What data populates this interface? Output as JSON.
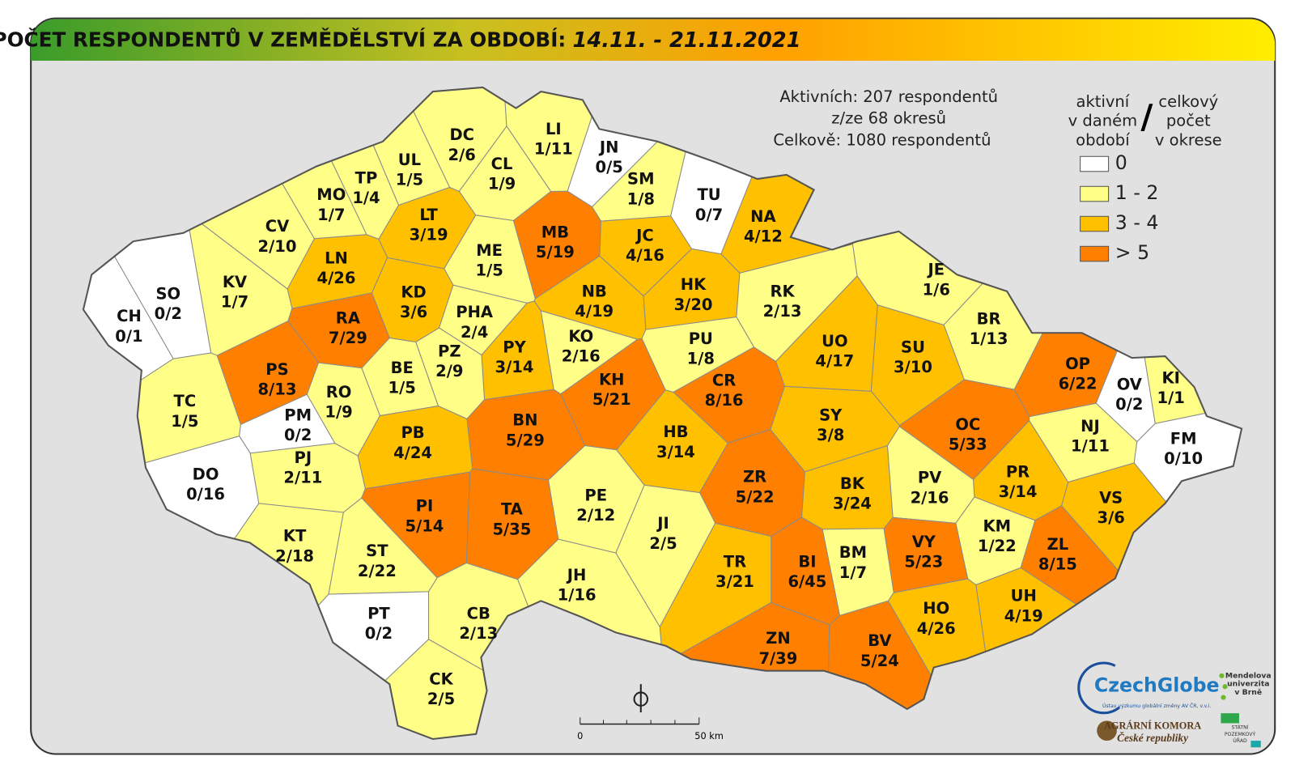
{
  "header": {
    "title": "POČET RESPONDENTŮ V ZEMĚDĚLSTVÍ ZA OBDOBÍ:",
    "period": "14.11. - 21.11.2021"
  },
  "summary": [
    "Aktivních: 207 respondentů",
    "z/ze 68 okresů",
    "Celkově: 1080 respondentů"
  ],
  "legend": {
    "left": [
      "aktivní",
      "v daném",
      "období"
    ],
    "separator": "/",
    "right": [
      "celkový",
      "počet",
      "v okrese"
    ],
    "items": [
      {
        "label": "0",
        "color": "#ffffff"
      },
      {
        "label": "1 - 2",
        "color": "#ffff88"
      },
      {
        "label": "3 - 4",
        "color": "#ffc000"
      },
      {
        "label": "> 5",
        "color": "#ff8000"
      }
    ]
  },
  "districts": [
    {
      "code": "DC",
      "label": "2/6",
      "active": 2,
      "color": "#ffff88"
    },
    {
      "code": "LI",
      "label": "1/11",
      "active": 1,
      "color": "#ffff88"
    },
    {
      "code": "JN",
      "label": "0/5",
      "active": 0,
      "color": "#ffffff"
    },
    {
      "code": "CL",
      "label": "1/9",
      "active": 1,
      "color": "#ffff88"
    },
    {
      "code": "UL",
      "label": "1/5",
      "active": 1,
      "color": "#ffff88"
    },
    {
      "code": "TP",
      "label": "1/4",
      "active": 1,
      "color": "#ffff88"
    },
    {
      "code": "MO",
      "label": "1/7",
      "active": 1,
      "color": "#ffff88"
    },
    {
      "code": "SM",
      "label": "1/8",
      "active": 1,
      "color": "#ffff88"
    },
    {
      "code": "TU",
      "label": "0/7",
      "active": 0,
      "color": "#ffffff"
    },
    {
      "code": "NA",
      "label": "4/12",
      "active": 4,
      "color": "#ffc000"
    },
    {
      "code": "LT",
      "label": "3/19",
      "active": 3,
      "color": "#ffc000"
    },
    {
      "code": "MB",
      "label": "5/19",
      "active": 5,
      "color": "#ff8000"
    },
    {
      "code": "CV",
      "label": "2/10",
      "active": 2,
      "color": "#ffff88"
    },
    {
      "code": "JC",
      "label": "4/16",
      "active": 4,
      "color": "#ffc000"
    },
    {
      "code": "ME",
      "label": "1/5",
      "active": 1,
      "color": "#ffff88"
    },
    {
      "code": "LN",
      "label": "4/26",
      "active": 4,
      "color": "#ffc000"
    },
    {
      "code": "JE",
      "label": "1/6",
      "active": 1,
      "color": "#ffff88"
    },
    {
      "code": "KV",
      "label": "1/7",
      "active": 1,
      "color": "#ffff88"
    },
    {
      "code": "SO",
      "label": "0/2",
      "active": 0,
      "color": "#ffffff"
    },
    {
      "code": "KD",
      "label": "3/6",
      "active": 3,
      "color": "#ffc000"
    },
    {
      "code": "NB",
      "label": "4/19",
      "active": 4,
      "color": "#ffc000"
    },
    {
      "code": "HK",
      "label": "3/20",
      "active": 3,
      "color": "#ffc000"
    },
    {
      "code": "RK",
      "label": "2/13",
      "active": 2,
      "color": "#ffff88"
    },
    {
      "code": "CH",
      "label": "0/1",
      "active": 0,
      "color": "#ffffff"
    },
    {
      "code": "RA",
      "label": "7/29",
      "active": 7,
      "color": "#ff8000"
    },
    {
      "code": "PHA",
      "label": "2/4",
      "active": 2,
      "color": "#ffff88"
    },
    {
      "code": "BR",
      "label": "1/13",
      "active": 1,
      "color": "#ffff88"
    },
    {
      "code": "UO",
      "label": "4/17",
      "active": 4,
      "color": "#ffc000"
    },
    {
      "code": "SU",
      "label": "3/10",
      "active": 3,
      "color": "#ffc000"
    },
    {
      "code": "PU",
      "label": "1/8",
      "active": 1,
      "color": "#ffff88"
    },
    {
      "code": "KO",
      "label": "2/16",
      "active": 2,
      "color": "#ffff88"
    },
    {
      "code": "PY",
      "label": "3/14",
      "active": 3,
      "color": "#ffc000"
    },
    {
      "code": "PZ",
      "label": "2/9",
      "active": 2,
      "color": "#ffff88"
    },
    {
      "code": "BE",
      "label": "1/5",
      "active": 1,
      "color": "#ffff88"
    },
    {
      "code": "PS",
      "label": "8/13",
      "active": 8,
      "color": "#ff8000"
    },
    {
      "code": "OP",
      "label": "6/22",
      "active": 6,
      "color": "#ff8000"
    },
    {
      "code": "KI",
      "label": "1/1",
      "active": 1,
      "color": "#ffff88"
    },
    {
      "code": "OV",
      "label": "0/2",
      "active": 0,
      "color": "#ffffff"
    },
    {
      "code": "KH",
      "label": "5/21",
      "active": 5,
      "color": "#ff8000"
    },
    {
      "code": "CR",
      "label": "8/16",
      "active": 8,
      "color": "#ff8000"
    },
    {
      "code": "RO",
      "label": "1/9",
      "active": 1,
      "color": "#ffff88"
    },
    {
      "code": "TC",
      "label": "1/5",
      "active": 1,
      "color": "#ffff88"
    },
    {
      "code": "SY",
      "label": "3/8",
      "active": 3,
      "color": "#ffc000"
    },
    {
      "code": "OC",
      "label": "5/33",
      "active": 5,
      "color": "#ff8000"
    },
    {
      "code": "PM",
      "label": "0/2",
      "active": 0,
      "color": "#ffffff"
    },
    {
      "code": "BN",
      "label": "5/29",
      "active": 5,
      "color": "#ff8000"
    },
    {
      "code": "NJ",
      "label": "1/11",
      "active": 1,
      "color": "#ffff88"
    },
    {
      "code": "FM",
      "label": "0/10",
      "active": 0,
      "color": "#ffffff"
    },
    {
      "code": "HB",
      "label": "3/14",
      "active": 3,
      "color": "#ffc000"
    },
    {
      "code": "PB",
      "label": "4/24",
      "active": 4,
      "color": "#ffc000"
    },
    {
      "code": "DO",
      "label": "0/16",
      "active": 0,
      "color": "#ffffff"
    },
    {
      "code": "PJ",
      "label": "2/11",
      "active": 2,
      "color": "#ffff88"
    },
    {
      "code": "ZR",
      "label": "5/22",
      "active": 5,
      "color": "#ff8000"
    },
    {
      "code": "BK",
      "label": "3/24",
      "active": 3,
      "color": "#ffc000"
    },
    {
      "code": "PR",
      "label": "3/14",
      "active": 3,
      "color": "#ffc000"
    },
    {
      "code": "PV",
      "label": "2/16",
      "active": 2,
      "color": "#ffff88"
    },
    {
      "code": "VS",
      "label": "3/6",
      "active": 3,
      "color": "#ffc000"
    },
    {
      "code": "PE",
      "label": "2/12",
      "active": 2,
      "color": "#ffff88"
    },
    {
      "code": "PI",
      "label": "5/14",
      "active": 5,
      "color": "#ff8000"
    },
    {
      "code": "TA",
      "label": "5/35",
      "active": 5,
      "color": "#ff8000"
    },
    {
      "code": "JI",
      "label": "2/5",
      "active": 2,
      "color": "#ffff88"
    },
    {
      "code": "KM",
      "label": "1/22",
      "active": 1,
      "color": "#ffff88"
    },
    {
      "code": "VY",
      "label": "5/23",
      "active": 5,
      "color": "#ff8000"
    },
    {
      "code": "ZL",
      "label": "8/15",
      "active": 8,
      "color": "#ff8000"
    },
    {
      "code": "KT",
      "label": "2/18",
      "active": 2,
      "color": "#ffff88"
    },
    {
      "code": "ST",
      "label": "2/22",
      "active": 2,
      "color": "#ffff88"
    },
    {
      "code": "BM",
      "label": "1/7",
      "active": 1,
      "color": "#ffff88"
    },
    {
      "code": "BI",
      "label": "6/45",
      "active": 6,
      "color": "#ff8000"
    },
    {
      "code": "TR",
      "label": "3/21",
      "active": 3,
      "color": "#ffc000"
    },
    {
      "code": "JH",
      "label": "1/16",
      "active": 1,
      "color": "#ffff88"
    },
    {
      "code": "UH",
      "label": "4/19",
      "active": 4,
      "color": "#ffc000"
    },
    {
      "code": "HO",
      "label": "4/26",
      "active": 4,
      "color": "#ffc000"
    },
    {
      "code": "PT",
      "label": "0/2",
      "active": 0,
      "color": "#ffffff"
    },
    {
      "code": "CB",
      "label": "2/13",
      "active": 2,
      "color": "#ffff88"
    },
    {
      "code": "ZN",
      "label": "7/39",
      "active": 7,
      "color": "#ff8000"
    },
    {
      "code": "BV",
      "label": "5/24",
      "active": 5,
      "color": "#ff8000"
    },
    {
      "code": "CK",
      "label": "2/5",
      "active": 2,
      "color": "#ffff88"
    }
  ],
  "scale": {
    "start": "0",
    "end": "50 km"
  },
  "logos": {
    "czechglobe": "CzechGlobe",
    "czechglobe_sub": "Ústav výzkumu globální změny AV ČR, v.v.i.",
    "mendel": [
      "Mendelova",
      "univerzita",
      "v Brně"
    ],
    "komora": "AGRÁRNÍ KOMORA",
    "komora_sub": "České republiky",
    "spu": [
      "STÁTNÍ",
      "POZEMKOVÝ",
      "ÚŘAD"
    ]
  }
}
